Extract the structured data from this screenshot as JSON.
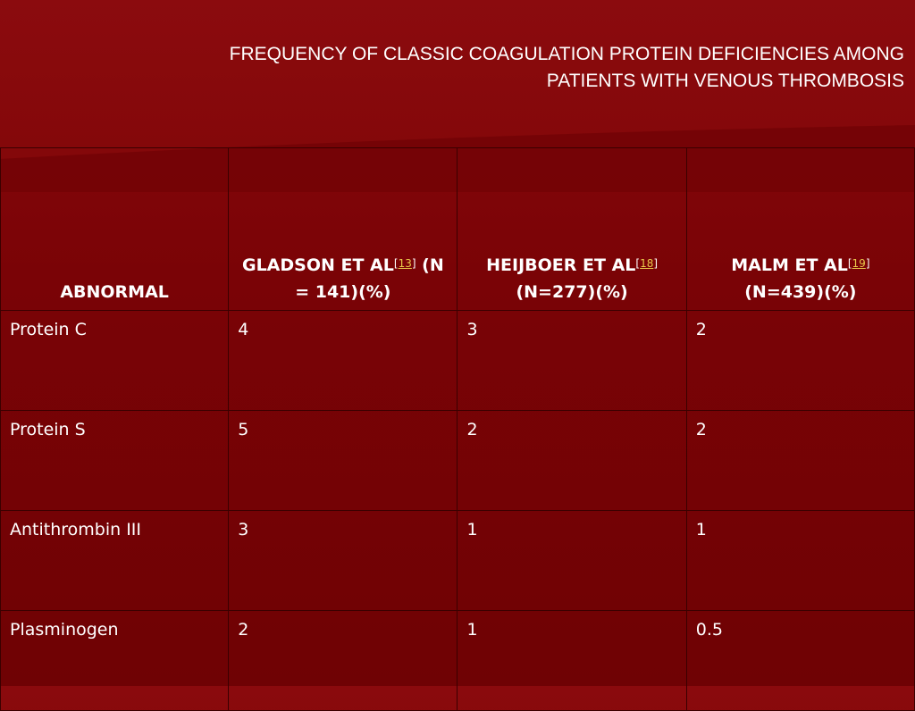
{
  "slide": {
    "title_line1": "FREQUENCY OF CLASSIC COAGULATION PROTEIN DEFICIENCIES AMONG",
    "title_line2": "PATIENTS WITH VENOUS THROMBOSIS"
  },
  "colors": {
    "background": "#7a0306",
    "text": "#ffffff",
    "reference_link": "#e8c84a",
    "border": "#3a0000"
  },
  "table": {
    "headers": [
      {
        "pre": "ABNORMAL"
      },
      {
        "pre": "GLADSON ET AL",
        "ref": "13",
        "post": " (N = 141)(%)"
      },
      {
        "pre": "HEIJBOER ET AL",
        "ref": "18",
        "post": " (N=277)(%)"
      },
      {
        "pre": "MALM ET AL",
        "ref": "19",
        "post": " (N=439)(%)"
      }
    ],
    "rows": [
      [
        "Protein C",
        "4",
        "3",
        "2"
      ],
      [
        "Protein S",
        "5",
        "2",
        "2"
      ],
      [
        "Antithrombin III",
        "3",
        "1",
        "1"
      ],
      [
        "Plasminogen",
        "2",
        "1",
        "0.5"
      ]
    ]
  }
}
